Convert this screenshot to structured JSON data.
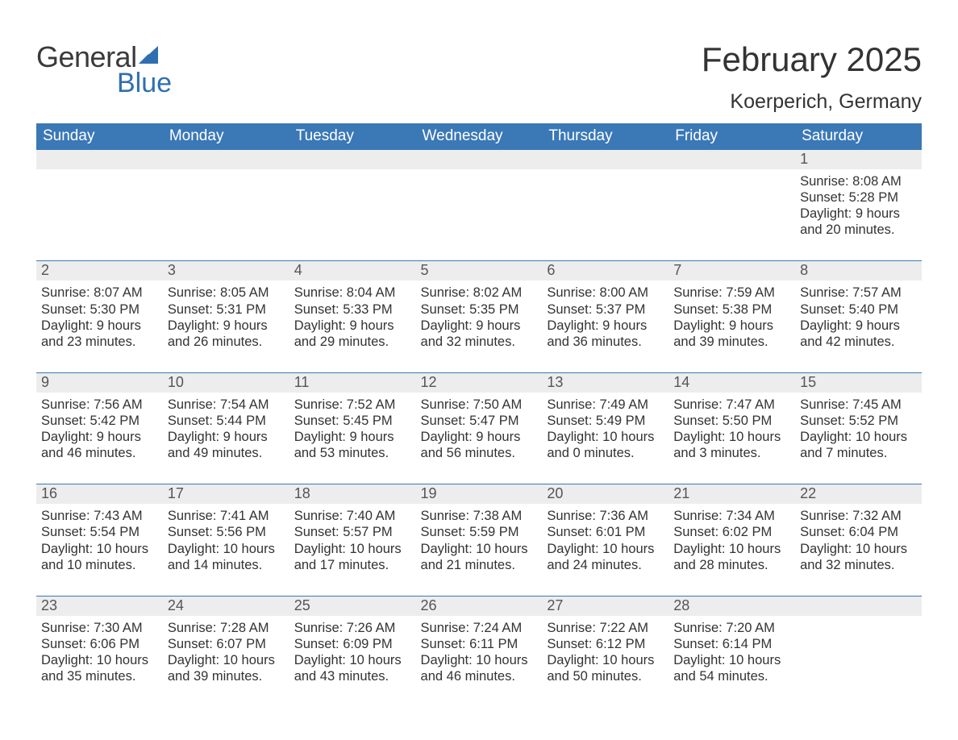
{
  "logo": {
    "text_general": "General",
    "text_blue": "Blue",
    "sail_color": "#2f6fb0",
    "text_color": "#3a3a3a"
  },
  "title": "February 2025",
  "location": "Koerperich, Germany",
  "header_bg": "#3b78b6",
  "header_fg": "#ffffff",
  "daynum_bg": "#ededed",
  "rule_color": "#3b78b6",
  "text_color": "#333333",
  "background_color": "#ffffff",
  "days_of_week": [
    "Sunday",
    "Monday",
    "Tuesday",
    "Wednesday",
    "Thursday",
    "Friday",
    "Saturday"
  ],
  "weeks": [
    [
      null,
      null,
      null,
      null,
      null,
      null,
      {
        "n": "1",
        "sunrise": "Sunrise: 8:08 AM",
        "sunset": "Sunset: 5:28 PM",
        "dl1": "Daylight: 9 hours",
        "dl2": "and 20 minutes."
      }
    ],
    [
      {
        "n": "2",
        "sunrise": "Sunrise: 8:07 AM",
        "sunset": "Sunset: 5:30 PM",
        "dl1": "Daylight: 9 hours",
        "dl2": "and 23 minutes."
      },
      {
        "n": "3",
        "sunrise": "Sunrise: 8:05 AM",
        "sunset": "Sunset: 5:31 PM",
        "dl1": "Daylight: 9 hours",
        "dl2": "and 26 minutes."
      },
      {
        "n": "4",
        "sunrise": "Sunrise: 8:04 AM",
        "sunset": "Sunset: 5:33 PM",
        "dl1": "Daylight: 9 hours",
        "dl2": "and 29 minutes."
      },
      {
        "n": "5",
        "sunrise": "Sunrise: 8:02 AM",
        "sunset": "Sunset: 5:35 PM",
        "dl1": "Daylight: 9 hours",
        "dl2": "and 32 minutes."
      },
      {
        "n": "6",
        "sunrise": "Sunrise: 8:00 AM",
        "sunset": "Sunset: 5:37 PM",
        "dl1": "Daylight: 9 hours",
        "dl2": "and 36 minutes."
      },
      {
        "n": "7",
        "sunrise": "Sunrise: 7:59 AM",
        "sunset": "Sunset: 5:38 PM",
        "dl1": "Daylight: 9 hours",
        "dl2": "and 39 minutes."
      },
      {
        "n": "8",
        "sunrise": "Sunrise: 7:57 AM",
        "sunset": "Sunset: 5:40 PM",
        "dl1": "Daylight: 9 hours",
        "dl2": "and 42 minutes."
      }
    ],
    [
      {
        "n": "9",
        "sunrise": "Sunrise: 7:56 AM",
        "sunset": "Sunset: 5:42 PM",
        "dl1": "Daylight: 9 hours",
        "dl2": "and 46 minutes."
      },
      {
        "n": "10",
        "sunrise": "Sunrise: 7:54 AM",
        "sunset": "Sunset: 5:44 PM",
        "dl1": "Daylight: 9 hours",
        "dl2": "and 49 minutes."
      },
      {
        "n": "11",
        "sunrise": "Sunrise: 7:52 AM",
        "sunset": "Sunset: 5:45 PM",
        "dl1": "Daylight: 9 hours",
        "dl2": "and 53 minutes."
      },
      {
        "n": "12",
        "sunrise": "Sunrise: 7:50 AM",
        "sunset": "Sunset: 5:47 PM",
        "dl1": "Daylight: 9 hours",
        "dl2": "and 56 minutes."
      },
      {
        "n": "13",
        "sunrise": "Sunrise: 7:49 AM",
        "sunset": "Sunset: 5:49 PM",
        "dl1": "Daylight: 10 hours",
        "dl2": "and 0 minutes."
      },
      {
        "n": "14",
        "sunrise": "Sunrise: 7:47 AM",
        "sunset": "Sunset: 5:50 PM",
        "dl1": "Daylight: 10 hours",
        "dl2": "and 3 minutes."
      },
      {
        "n": "15",
        "sunrise": "Sunrise: 7:45 AM",
        "sunset": "Sunset: 5:52 PM",
        "dl1": "Daylight: 10 hours",
        "dl2": "and 7 minutes."
      }
    ],
    [
      {
        "n": "16",
        "sunrise": "Sunrise: 7:43 AM",
        "sunset": "Sunset: 5:54 PM",
        "dl1": "Daylight: 10 hours",
        "dl2": "and 10 minutes."
      },
      {
        "n": "17",
        "sunrise": "Sunrise: 7:41 AM",
        "sunset": "Sunset: 5:56 PM",
        "dl1": "Daylight: 10 hours",
        "dl2": "and 14 minutes."
      },
      {
        "n": "18",
        "sunrise": "Sunrise: 7:40 AM",
        "sunset": "Sunset: 5:57 PM",
        "dl1": "Daylight: 10 hours",
        "dl2": "and 17 minutes."
      },
      {
        "n": "19",
        "sunrise": "Sunrise: 7:38 AM",
        "sunset": "Sunset: 5:59 PM",
        "dl1": "Daylight: 10 hours",
        "dl2": "and 21 minutes."
      },
      {
        "n": "20",
        "sunrise": "Sunrise: 7:36 AM",
        "sunset": "Sunset: 6:01 PM",
        "dl1": "Daylight: 10 hours",
        "dl2": "and 24 minutes."
      },
      {
        "n": "21",
        "sunrise": "Sunrise: 7:34 AM",
        "sunset": "Sunset: 6:02 PM",
        "dl1": "Daylight: 10 hours",
        "dl2": "and 28 minutes."
      },
      {
        "n": "22",
        "sunrise": "Sunrise: 7:32 AM",
        "sunset": "Sunset: 6:04 PM",
        "dl1": "Daylight: 10 hours",
        "dl2": "and 32 minutes."
      }
    ],
    [
      {
        "n": "23",
        "sunrise": "Sunrise: 7:30 AM",
        "sunset": "Sunset: 6:06 PM",
        "dl1": "Daylight: 10 hours",
        "dl2": "and 35 minutes."
      },
      {
        "n": "24",
        "sunrise": "Sunrise: 7:28 AM",
        "sunset": "Sunset: 6:07 PM",
        "dl1": "Daylight: 10 hours",
        "dl2": "and 39 minutes."
      },
      {
        "n": "25",
        "sunrise": "Sunrise: 7:26 AM",
        "sunset": "Sunset: 6:09 PM",
        "dl1": "Daylight: 10 hours",
        "dl2": "and 43 minutes."
      },
      {
        "n": "26",
        "sunrise": "Sunrise: 7:24 AM",
        "sunset": "Sunset: 6:11 PM",
        "dl1": "Daylight: 10 hours",
        "dl2": "and 46 minutes."
      },
      {
        "n": "27",
        "sunrise": "Sunrise: 7:22 AM",
        "sunset": "Sunset: 6:12 PM",
        "dl1": "Daylight: 10 hours",
        "dl2": "and 50 minutes."
      },
      {
        "n": "28",
        "sunrise": "Sunrise: 7:20 AM",
        "sunset": "Sunset: 6:14 PM",
        "dl1": "Daylight: 10 hours",
        "dl2": "and 54 minutes."
      },
      null
    ]
  ]
}
